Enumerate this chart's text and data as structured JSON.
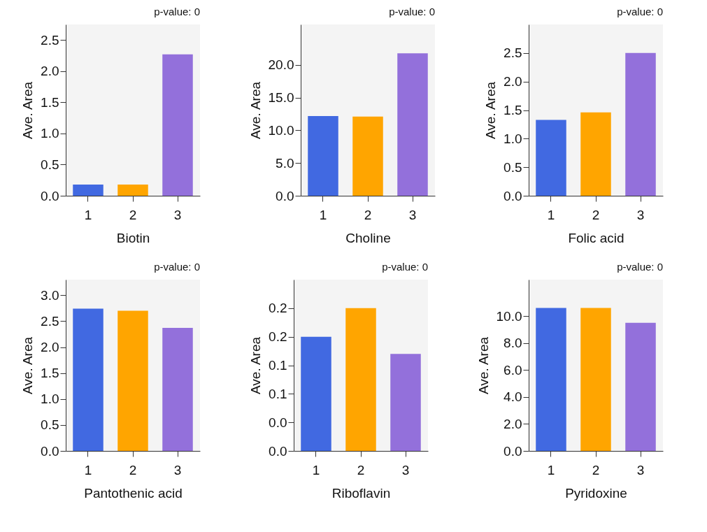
{
  "chart_data": [
    {
      "type": "bar",
      "xlabel": "Biotin",
      "ylabel": "Ave. Area",
      "annotations": [
        "p-value:   0"
      ],
      "categories": [
        "1",
        "2",
        "3"
      ],
      "values": [
        0.18,
        0.18,
        2.27
      ],
      "colors": [
        "#4169e1",
        "#ffa500",
        "#9370db"
      ],
      "ylim": [
        0,
        2.75
      ],
      "yticks": [
        {
          "value": 0,
          "label": "0.0"
        },
        {
          "value": 0.5,
          "label": "0.5"
        },
        {
          "value": 1,
          "label": "1.0"
        },
        {
          "value": 1.5,
          "label": "1.5"
        },
        {
          "value": 2,
          "label": "2.0"
        },
        {
          "value": 2.5,
          "label": "2.5"
        }
      ]
    },
    {
      "type": "bar",
      "xlabel": "Choline",
      "ylabel": "Ave. Area",
      "annotations": [
        "p-value:   0"
      ],
      "categories": [
        "1",
        "2",
        "3"
      ],
      "values": [
        12.2,
        12.1,
        21.8
      ],
      "colors": [
        "#4169e1",
        "#ffa500",
        "#9370db"
      ],
      "ylim": [
        0,
        26.2
      ],
      "yticks": [
        {
          "value": 0,
          "label": "0.0"
        },
        {
          "value": 5,
          "label": "5.0"
        },
        {
          "value": 10,
          "label": "10.0"
        },
        {
          "value": 15,
          "label": "15.0"
        },
        {
          "value": 20,
          "label": "20.0"
        }
      ]
    },
    {
      "type": "bar",
      "xlabel": "Folic acid",
      "ylabel": "Ave. Area",
      "annotations": [
        "p-value:   0"
      ],
      "categories": [
        "1",
        "2",
        "3"
      ],
      "values": [
        1.33,
        1.46,
        2.5
      ],
      "colors": [
        "#4169e1",
        "#ffa500",
        "#9370db"
      ],
      "ylim": [
        0,
        3.0
      ],
      "yticks": [
        {
          "value": 0,
          "label": "0.0"
        },
        {
          "value": 0.5,
          "label": "0.5"
        },
        {
          "value": 1,
          "label": "1.0"
        },
        {
          "value": 1.5,
          "label": "1.5"
        },
        {
          "value": 2,
          "label": "2.0"
        },
        {
          "value": 2.5,
          "label": "2.5"
        }
      ]
    },
    {
      "type": "bar",
      "xlabel": "Pantothenic acid",
      "ylabel": "Ave. Area",
      "annotations": [
        "p-value:   0"
      ],
      "categories": [
        "1",
        "2",
        "3"
      ],
      "values": [
        2.74,
        2.7,
        2.37
      ],
      "colors": [
        "#4169e1",
        "#ffa500",
        "#9370db"
      ],
      "ylim": [
        0,
        3.3
      ],
      "yticks": [
        {
          "value": 0,
          "label": "0.0"
        },
        {
          "value": 0.5,
          "label": "0.5"
        },
        {
          "value": 1,
          "label": "1.0"
        },
        {
          "value": 1.5,
          "label": "1.5"
        },
        {
          "value": 2,
          "label": "2.0"
        },
        {
          "value": 2.5,
          "label": "2.5"
        },
        {
          "value": 3,
          "label": "3.0"
        }
      ]
    },
    {
      "type": "bar",
      "xlabel": "Riboflavin",
      "ylabel": "Ave. Area",
      "annotations": [
        "p-value:   0"
      ],
      "categories": [
        "1",
        "2",
        "3"
      ],
      "values": [
        0.2,
        0.25,
        0.17
      ],
      "colors": [
        "#4169e1",
        "#ffa500",
        "#9370db"
      ],
      "ylim": [
        0,
        0.3
      ],
      "yticks": [
        {
          "value": 0,
          "label": "0.0"
        },
        {
          "value": 0.05,
          "label": "0.0"
        },
        {
          "value": 0.1,
          "label": "0.1"
        },
        {
          "value": 0.15,
          "label": "0.1"
        },
        {
          "value": 0.2,
          "label": "0.2"
        },
        {
          "value": 0.25,
          "label": "0.2"
        }
      ]
    },
    {
      "type": "bar",
      "xlabel": "Pyridoxine",
      "ylabel": "Ave. Area",
      "annotations": [
        "p-value:   0"
      ],
      "categories": [
        "1",
        "2",
        "3"
      ],
      "values": [
        10.6,
        10.6,
        9.5
      ],
      "colors": [
        "#4169e1",
        "#ffa500",
        "#9370db"
      ],
      "ylim": [
        0,
        12.7
      ],
      "yticks": [
        {
          "value": 0,
          "label": "0.0"
        },
        {
          "value": 2,
          "label": "2.0"
        },
        {
          "value": 4,
          "label": "4.0"
        },
        {
          "value": 6,
          "label": "6.0"
        },
        {
          "value": 8,
          "label": "8.0"
        },
        {
          "value": 10,
          "label": "10.0"
        }
      ]
    }
  ]
}
